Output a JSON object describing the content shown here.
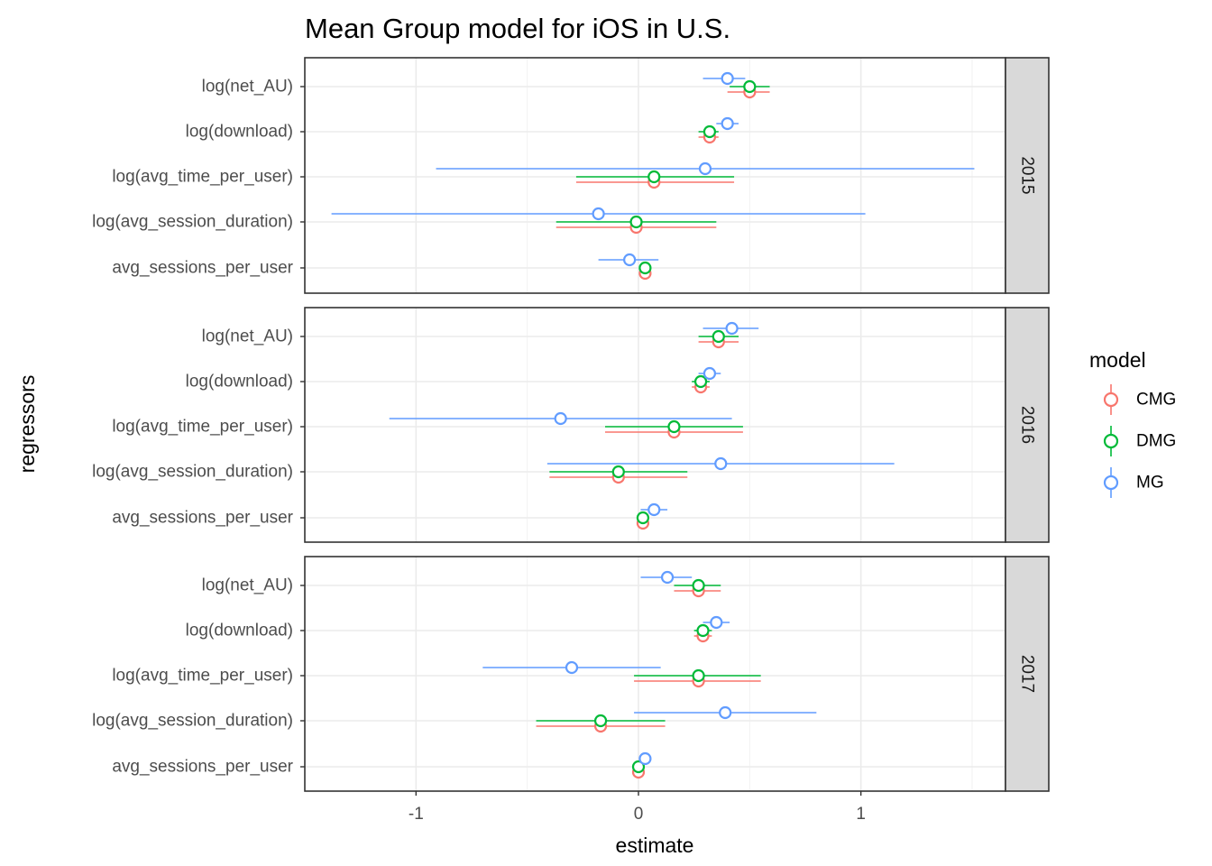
{
  "chart_data": {
    "type": "forest",
    "title": "Mean Group model for iOS in U.S.",
    "xlabel": "estimate",
    "ylabel": "regressors",
    "xlim": [
      -1.5,
      1.65
    ],
    "x_ticks": [
      -1,
      0,
      1
    ],
    "x_tick_labels": [
      "-1",
      "0",
      "1"
    ],
    "categories": [
      "log(net_AU)",
      "log(download)",
      "log(avg_time_per_user)",
      "log(avg_session_duration)",
      "avg_sessions_per_user"
    ],
    "grid": true,
    "legend": {
      "title": "model",
      "position": "right",
      "entries": [
        {
          "name": "CMG",
          "color": "#F8766D"
        },
        {
          "name": "DMG",
          "color": "#00BA38"
        },
        {
          "name": "MG",
          "color": "#619CFF"
        }
      ]
    },
    "panels": [
      {
        "label": "2015",
        "series": [
          {
            "name": "CMG",
            "estimate": [
              0.5,
              0.32,
              0.07,
              -0.01,
              0.03
            ],
            "lower": [
              0.4,
              0.27,
              -0.28,
              -0.37,
              0.02
            ],
            "upper": [
              0.59,
              0.36,
              0.43,
              0.35,
              0.04
            ]
          },
          {
            "name": "DMG",
            "estimate": [
              0.5,
              0.32,
              0.07,
              -0.01,
              0.03
            ],
            "lower": [
              0.41,
              0.27,
              -0.28,
              -0.37,
              0.02
            ],
            "upper": [
              0.59,
              0.36,
              0.43,
              0.35,
              0.04
            ]
          },
          {
            "name": "MG",
            "estimate": [
              0.4,
              0.4,
              0.3,
              -0.18,
              -0.04
            ],
            "lower": [
              0.29,
              0.35,
              -0.91,
              -1.38,
              -0.18
            ],
            "upper": [
              0.48,
              0.45,
              1.51,
              1.02,
              0.09
            ]
          }
        ]
      },
      {
        "label": "2016",
        "series": [
          {
            "name": "CMG",
            "estimate": [
              0.36,
              0.28,
              0.16,
              -0.09,
              0.02
            ],
            "lower": [
              0.27,
              0.24,
              -0.15,
              -0.4,
              0.01
            ],
            "upper": [
              0.45,
              0.32,
              0.47,
              0.22,
              0.03
            ]
          },
          {
            "name": "DMG",
            "estimate": [
              0.36,
              0.28,
              0.16,
              -0.09,
              0.02
            ],
            "lower": [
              0.27,
              0.24,
              -0.15,
              -0.4,
              0.01
            ],
            "upper": [
              0.45,
              0.32,
              0.47,
              0.22,
              0.03
            ]
          },
          {
            "name": "MG",
            "estimate": [
              0.42,
              0.32,
              -0.35,
              0.37,
              0.07
            ],
            "lower": [
              0.29,
              0.27,
              -1.12,
              -0.41,
              0.01
            ],
            "upper": [
              0.54,
              0.37,
              0.42,
              1.15,
              0.13
            ]
          }
        ]
      },
      {
        "label": "2017",
        "series": [
          {
            "name": "CMG",
            "estimate": [
              0.27,
              0.29,
              0.27,
              -0.17,
              0.0
            ],
            "lower": [
              0.16,
              0.25,
              -0.02,
              -0.46,
              -0.01
            ],
            "upper": [
              0.37,
              0.33,
              0.55,
              0.12,
              0.01
            ]
          },
          {
            "name": "DMG",
            "estimate": [
              0.27,
              0.29,
              0.27,
              -0.17,
              0.0
            ],
            "lower": [
              0.16,
              0.25,
              -0.02,
              -0.46,
              -0.01
            ],
            "upper": [
              0.37,
              0.33,
              0.55,
              0.12,
              0.01
            ]
          },
          {
            "name": "MG",
            "estimate": [
              0.13,
              0.35,
              -0.3,
              0.39,
              0.03
            ],
            "lower": [
              0.01,
              0.29,
              -0.7,
              -0.02,
              0.01
            ],
            "upper": [
              0.24,
              0.41,
              0.1,
              0.8,
              0.05
            ]
          }
        ]
      }
    ]
  }
}
